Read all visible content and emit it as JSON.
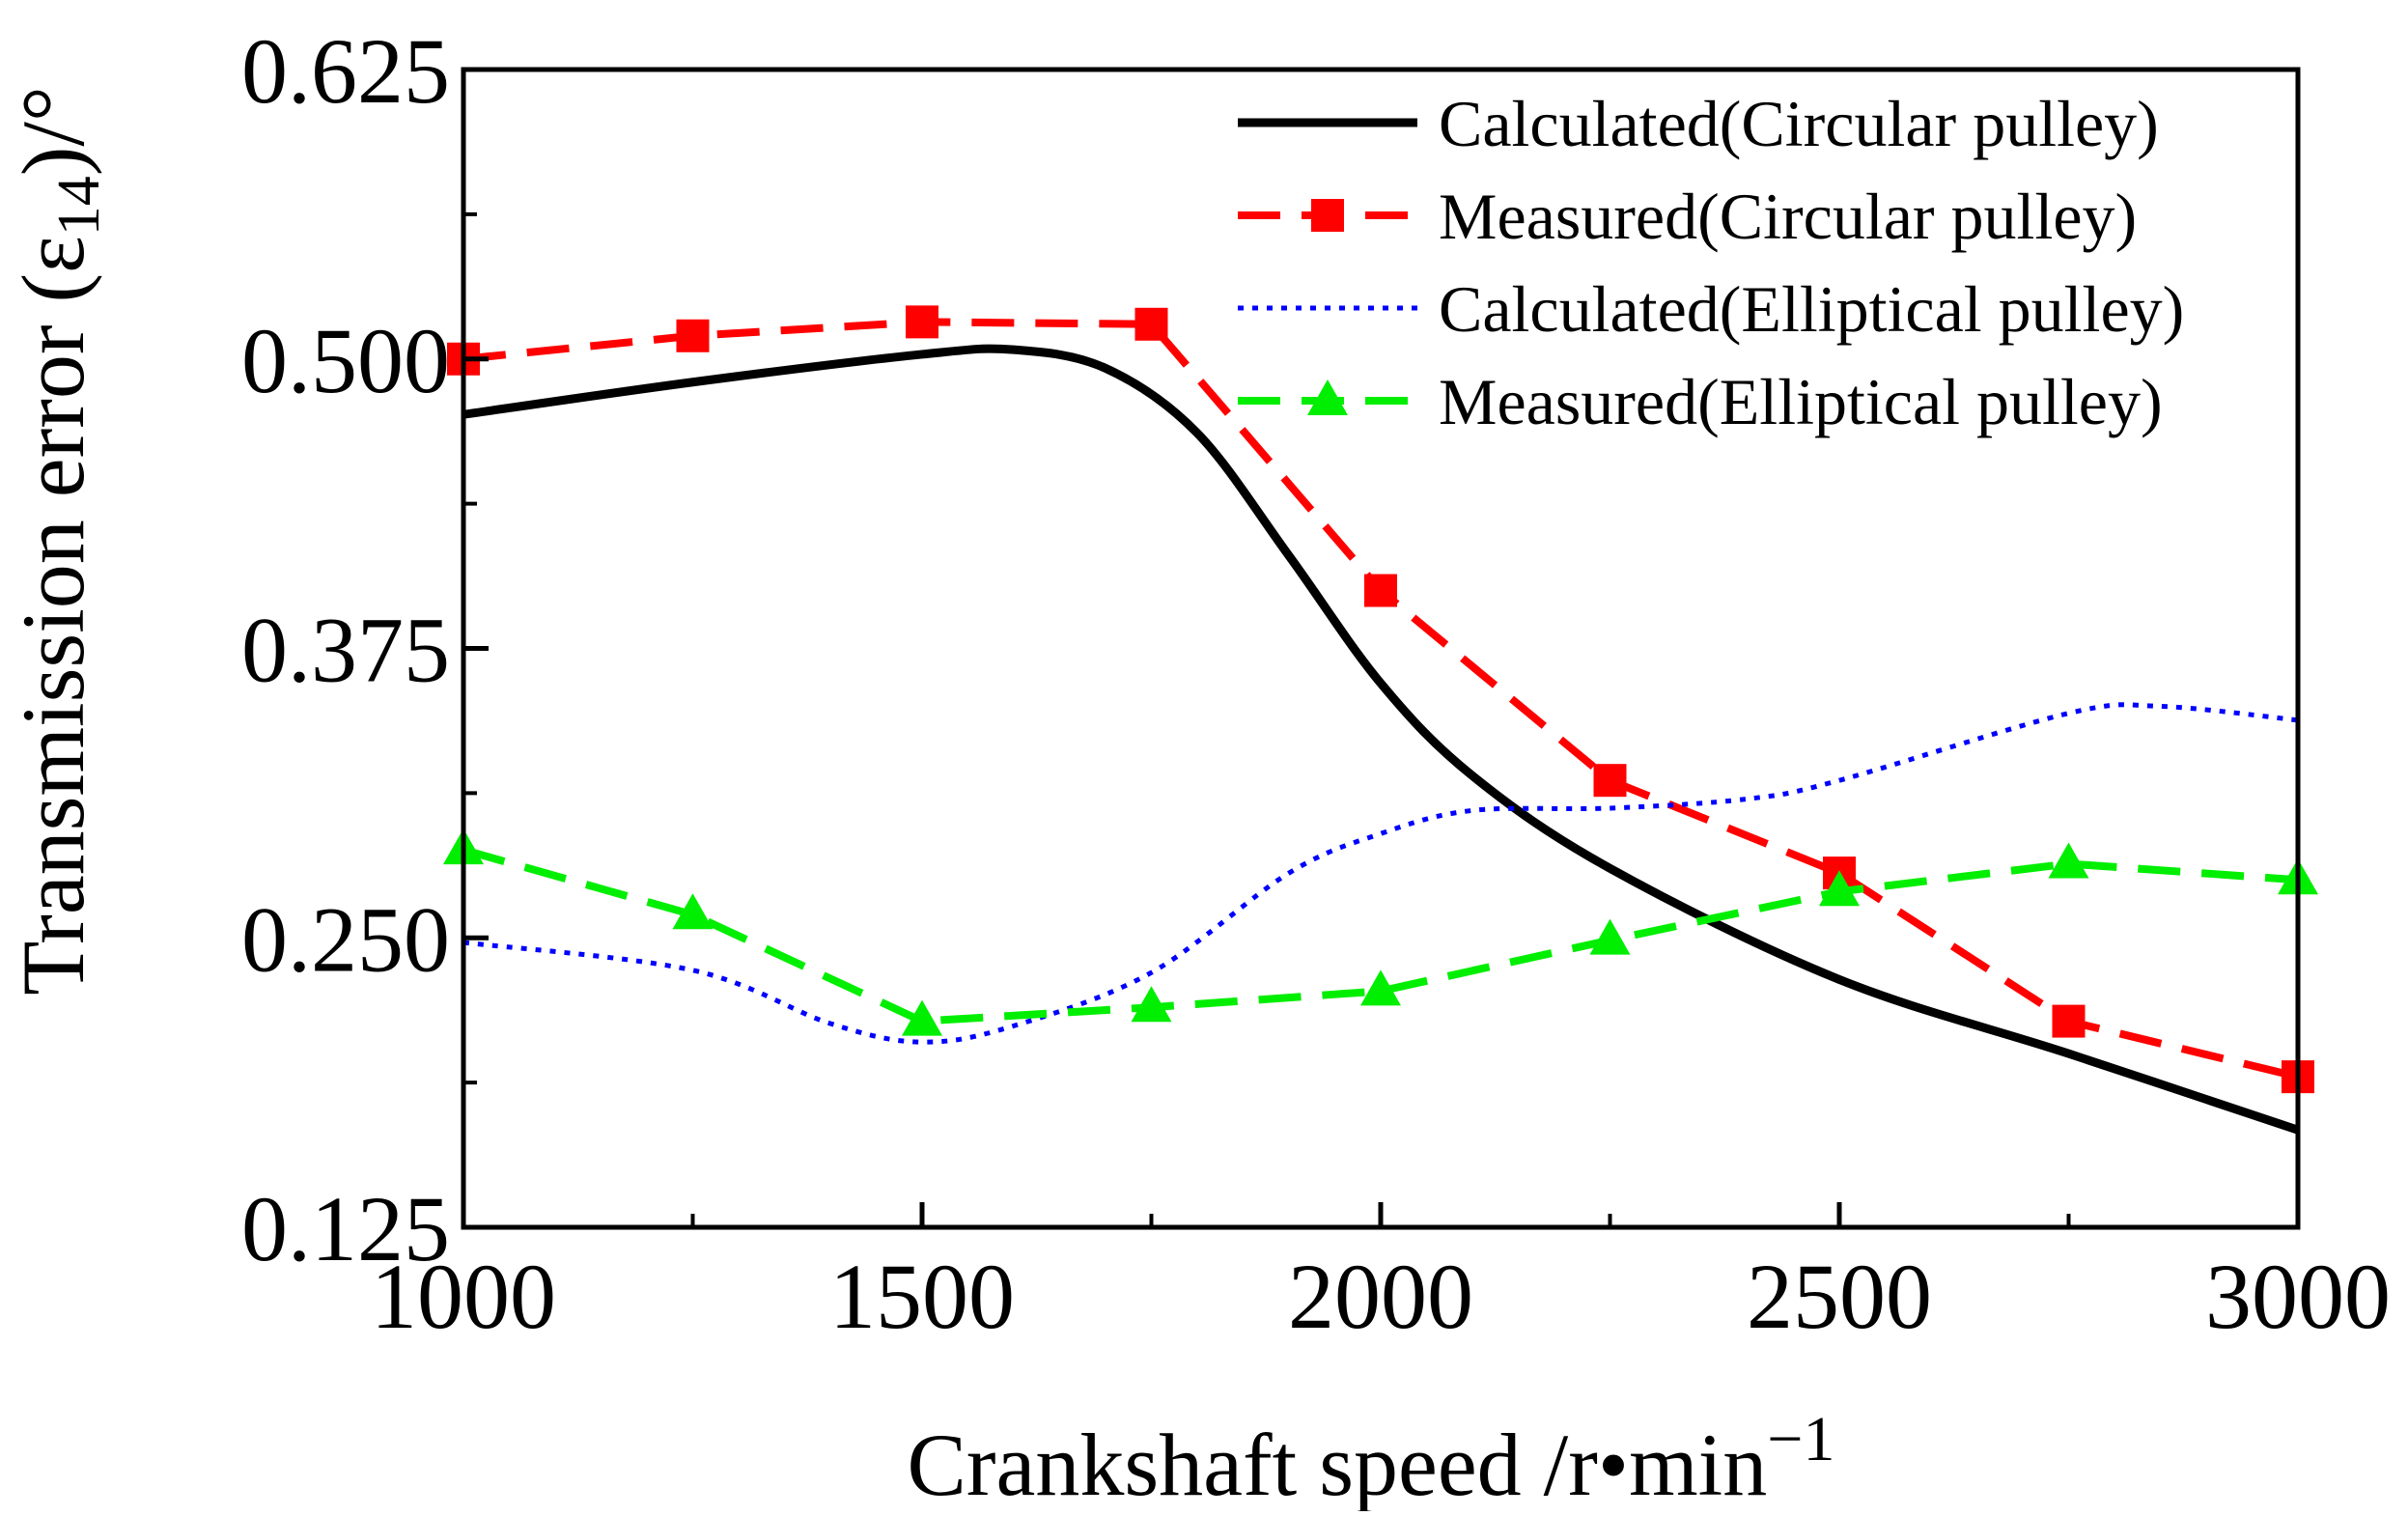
{
  "chart_data": {
    "type": "line",
    "title": "",
    "xlabel": "Crankshaft speed /r•min",
    "xlabel_sup": "−1",
    "ylabel_prefix": "Transmission error (ε",
    "ylabel_sub": "14",
    "ylabel_suffix": ")/°",
    "xlim": [
      1000,
      3000
    ],
    "ylim": [
      0.125,
      0.625
    ],
    "xticks": [
      1000,
      1500,
      2000,
      2500,
      3000
    ],
    "xtick_labels": [
      "1000",
      "1500",
      "2000",
      "2500",
      "3000"
    ],
    "yticks": [
      0.125,
      0.25,
      0.375,
      0.5,
      0.625
    ],
    "ytick_labels": [
      "0.125",
      "0.250",
      "0.375",
      "0.500",
      "0.625"
    ],
    "legend_position": "top-right",
    "series": [
      {
        "name": "Calculated(Circular pulley)",
        "style": "solid",
        "color": "#000000",
        "marker": "none",
        "x": [
          1000,
          1250,
          1500,
          1600,
          1700,
          1800,
          1900,
          2000,
          2100,
          2250,
          2500,
          2750,
          3000
        ],
        "y": [
          0.476,
          0.49,
          0.502,
          0.504,
          0.496,
          0.468,
          0.415,
          0.36,
          0.32,
          0.28,
          0.232,
          0.2,
          0.167
        ]
      },
      {
        "name": "Measured(Circular pulley)",
        "style": "dashed",
        "color": "#ff0000",
        "marker": "square",
        "x": [
          1000,
          1250,
          1500,
          1750,
          2000,
          2250,
          2500,
          2750,
          3000
        ],
        "y": [
          0.5,
          0.51,
          0.516,
          0.515,
          0.4,
          0.318,
          0.278,
          0.214,
          0.19
        ]
      },
      {
        "name": "Calculated(Elliptical pulley)",
        "style": "dotted",
        "color": "#0000ff",
        "marker": "none",
        "x": [
          1000,
          1250,
          1400,
          1500,
          1600,
          1750,
          1900,
          2000,
          2100,
          2250,
          2400,
          2500,
          2750,
          2850,
          3000
        ],
        "y": [
          0.248,
          0.236,
          0.213,
          0.205,
          0.212,
          0.235,
          0.278,
          0.295,
          0.305,
          0.306,
          0.31,
          0.318,
          0.347,
          0.35,
          0.344
        ]
      },
      {
        "name": "Measured(Elliptical pulley)",
        "style": "dashed",
        "color": "#00ee00",
        "marker": "triangle",
        "x": [
          1000,
          1250,
          1500,
          1750,
          2000,
          2250,
          2500,
          2750,
          3000
        ],
        "y": [
          0.288,
          0.26,
          0.214,
          0.22,
          0.227,
          0.249,
          0.27,
          0.282,
          0.275
        ]
      }
    ]
  }
}
